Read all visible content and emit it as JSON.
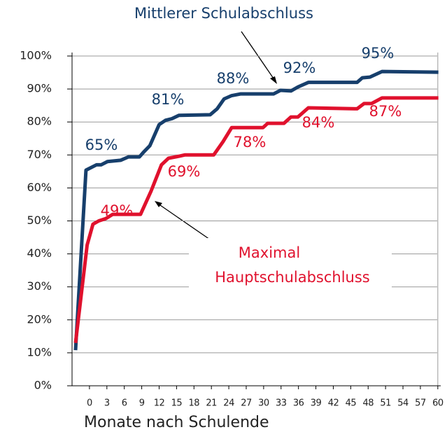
{
  "chart_data": {
    "type": "line",
    "xlabel": "Monate nach Schulende",
    "xlim": [
      -3,
      60.5
    ],
    "ylim": [
      0,
      100
    ],
    "xticks": [
      0,
      3,
      6,
      9,
      12,
      15,
      18,
      21,
      24,
      27,
      30,
      33,
      36,
      39,
      42,
      45,
      48,
      51,
      54,
      57,
      60
    ],
    "yticks": [
      {
        "value": 0,
        "label": "0%"
      },
      {
        "value": 10,
        "label": "10%"
      },
      {
        "value": 20,
        "label": "20%"
      },
      {
        "value": 30,
        "label": "30%"
      },
      {
        "value": 40,
        "label": "40%"
      },
      {
        "value": 50,
        "label": "50%"
      },
      {
        "value": 60,
        "label": "60%"
      },
      {
        "value": 70,
        "label": "70%"
      },
      {
        "value": 80,
        "label": "80%"
      },
      {
        "value": 90,
        "label": "90%"
      },
      {
        "value": 100,
        "label": "100%"
      }
    ],
    "grid": true,
    "series": [
      {
        "name": "Mittlerer Schulabschluss",
        "color": "#173f6c",
        "x": [
          -2.4,
          -0.6,
          1.2,
          2.0,
          3.1,
          5.4,
          6.7,
          8.6,
          9.4,
          10.4,
          12.0,
          13.1,
          14.2,
          15.4,
          20.8,
          22.0,
          23.2,
          24.5,
          26.0,
          31.7,
          32.9,
          34.7,
          35.9,
          37.7,
          46.1,
          47.0,
          48.3,
          50.4,
          60.1
        ],
        "values": [
          10.8,
          65.4,
          67,
          67,
          68,
          68.4,
          69.4,
          69.4,
          71,
          72.8,
          79.2,
          80.5,
          81,
          82,
          82.2,
          84,
          87,
          88,
          88.5,
          88.5,
          89.6,
          89.4,
          90.6,
          92,
          92,
          93.4,
          93.6,
          95.3,
          95.1
        ],
        "annotations": [
          "65%",
          "81%",
          "88%",
          "92%",
          "95%"
        ]
      },
      {
        "name": "Maximal Hauptschulabschluss",
        "color": "#e0112d",
        "x": [
          -2.4,
          -0.4,
          0.6,
          1.6,
          2.8,
          4.0,
          8.8,
          10.6,
          12.4,
          13.6,
          15.4,
          16.4,
          21.4,
          23.0,
          24.5,
          29.9,
          30.7,
          33.5,
          34.7,
          35.9,
          37.7,
          46.1,
          47.3,
          48.6,
          50.4,
          60.1
        ],
        "values": [
          13,
          42.7,
          49,
          50,
          50.7,
          52,
          52,
          59,
          67,
          69,
          69.6,
          70,
          70,
          74,
          78.3,
          78.3,
          79.6,
          79.6,
          81.5,
          81.5,
          84.3,
          84,
          85.6,
          85.6,
          87.3,
          87.3
        ],
        "annotations": [
          "49%",
          "69%",
          "78%",
          "84%",
          "87%"
        ]
      }
    ]
  }
}
